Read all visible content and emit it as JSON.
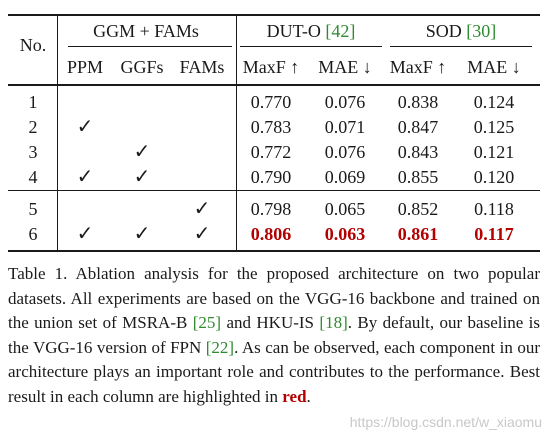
{
  "table": {
    "headers": {
      "no": "No.",
      "group_ggm": "GGM + FAMs",
      "group_duto": "DUT-O",
      "group_duto_ref": "[42]",
      "group_sod": "SOD",
      "group_sod_ref": "[30]",
      "ppm": "PPM",
      "ggfs": "GGFs",
      "fams": "FAMs",
      "maxf_duto": "MaxF ↑",
      "mae_duto": "MAE ↓",
      "maxf_sod": "MaxF ↑",
      "mae_sod": "MAE ↓"
    },
    "check_symbol": "✓",
    "rows": [
      {
        "no": "1",
        "ppm": false,
        "ggfs": false,
        "fams": false,
        "duto_maxf": "0.770",
        "duto_mae": "0.076",
        "sod_maxf": "0.838",
        "sod_mae": "0.124"
      },
      {
        "no": "2",
        "ppm": true,
        "ggfs": false,
        "fams": false,
        "duto_maxf": "0.783",
        "duto_mae": "0.071",
        "sod_maxf": "0.847",
        "sod_mae": "0.125"
      },
      {
        "no": "3",
        "ppm": false,
        "ggfs": true,
        "fams": false,
        "duto_maxf": "0.772",
        "duto_mae": "0.076",
        "sod_maxf": "0.843",
        "sod_mae": "0.121"
      },
      {
        "no": "4",
        "ppm": true,
        "ggfs": true,
        "fams": false,
        "duto_maxf": "0.790",
        "duto_mae": "0.069",
        "sod_maxf": "0.855",
        "sod_mae": "0.120"
      },
      {
        "no": "5",
        "ppm": false,
        "ggfs": false,
        "fams": true,
        "duto_maxf": "0.798",
        "duto_mae": "0.065",
        "sod_maxf": "0.852",
        "sod_mae": "0.118"
      },
      {
        "no": "6",
        "ppm": true,
        "ggfs": true,
        "fams": true,
        "duto_maxf": "0.806",
        "duto_mae": "0.063",
        "sod_maxf": "0.861",
        "sod_mae": "0.117"
      }
    ],
    "best_row": "6",
    "best_color": "#b30000",
    "ref_color": "#2e8b2e"
  },
  "caption": {
    "part1": "Table 1. Ablation analysis for the proposed architecture on two popular datasets. All experiments are based on the VGG-16 backbone and trained on the union set of MSRA-B ",
    "ref1": "[25]",
    "part2": " and HKU-IS ",
    "ref2": "[18]",
    "part3": ". By default, our baseline is the VGG-16 version of FPN ",
    "ref3": "[22]",
    "part4": ". As can be observed, each component in our architecture plays an important role and contributes to the performance. Best result in each column are highlighted in ",
    "red_word": "red",
    "part5": "."
  },
  "watermark": "https://blog.csdn.net/w_xiaomu"
}
